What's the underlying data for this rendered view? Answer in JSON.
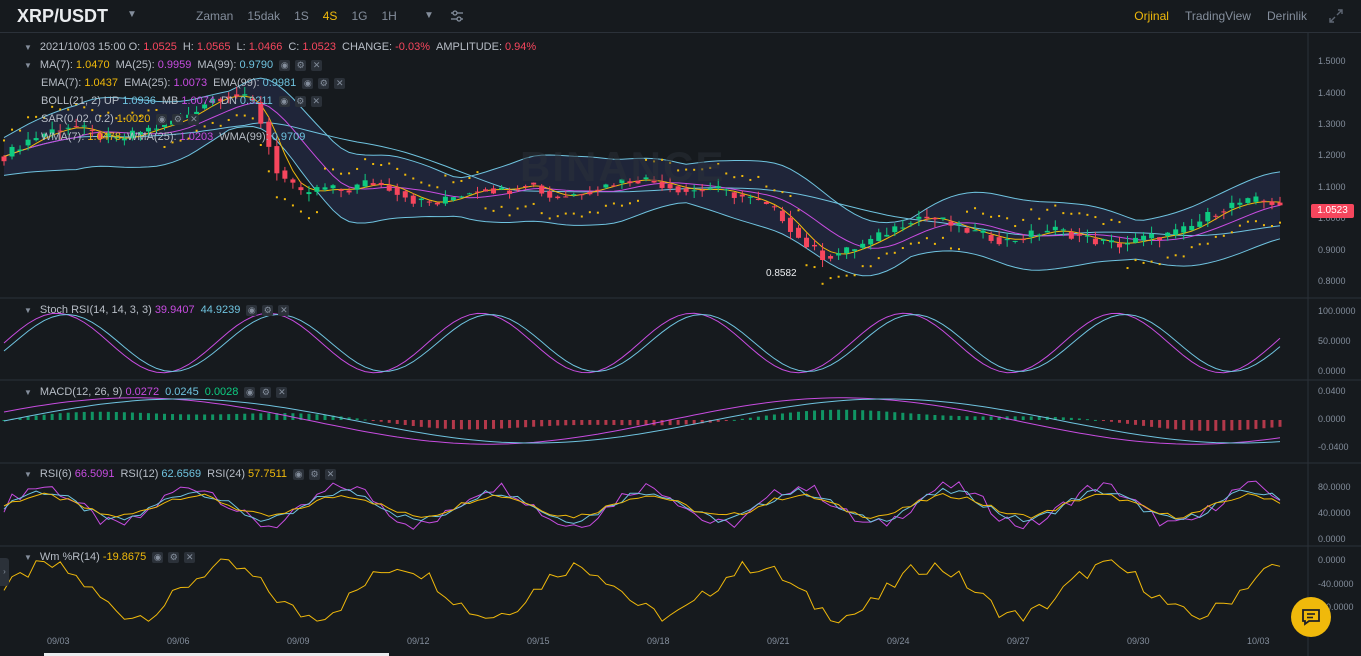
{
  "header": {
    "pair": "XRP/USDT",
    "intervals": [
      "Zaman",
      "15dak",
      "1S",
      "4S",
      "1G",
      "1H"
    ],
    "active_interval": "4S",
    "views": [
      "Orjinal",
      "TradingView",
      "Derinlik"
    ],
    "active_view": "Orjinal"
  },
  "colors": {
    "up": "#0ecb81",
    "down": "#f6465d",
    "accent": "#f0b90b",
    "bg": "#161a1e"
  },
  "legend": {
    "ohlc": {
      "date": "2021/10/03 15:00",
      "o_label": "O:",
      "o": "1.0525",
      "h_label": "H:",
      "h": "1.0565",
      "l_label": "L:",
      "l": "1.0466",
      "c_label": "C:",
      "c": "1.0523",
      "change_label": "CHANGE:",
      "change": "-0.03%",
      "amp_label": "AMPLITUDE:",
      "amp": "0.94%"
    },
    "ma": {
      "l1": "MA(7):",
      "v1": "1.0470",
      "l2": "MA(25):",
      "v2": "0.9959",
      "l3": "MA(99):",
      "v3": "0.9790"
    },
    "ema": {
      "l1": "EMA(7):",
      "v1": "1.0437",
      "l2": "EMA(25):",
      "v2": "1.0073",
      "l3": "EMA(99):",
      "v3": "0.9981"
    },
    "boll": {
      "l1": "BOLL(21, 2)",
      "l_up": "UP",
      "up": "1.0936",
      "l_mb": "MB",
      "mb": "1.0074",
      "l_dn": "DN",
      "dn": "0.9211"
    },
    "sar": {
      "l1": "SAR(0.02, 0.2)",
      "v1": "1.0020"
    },
    "wma": {
      "l1": "WMA(7):",
      "v1": "1.0478",
      "l2": "WMA(25):",
      "v2": "1.0203",
      "l3": "WMA(99):",
      "v3": "0.9709"
    },
    "stoch": {
      "l1": "Stoch RSI(14, 14, 3, 3)",
      "v1": "39.9407",
      "v2": "44.9239"
    },
    "macd": {
      "l1": "MACD(12, 26, 9)",
      "v1": "0.0272",
      "v2": "0.0245",
      "v3": "0.0028"
    },
    "rsi": {
      "l1": "RSI(6)",
      "v1": "66.5091",
      "l2": "RSI(12)",
      "v2": "62.6569",
      "l3": "RSI(24)",
      "v3": "57.7511"
    },
    "wr": {
      "l1": "Wm %R(14)",
      "v1": "-19.8675"
    }
  },
  "last_price_tag": "1.0523",
  "low_marker": "0.8582",
  "watermark": "BINANCE",
  "chart_data": {
    "type": "candlestick",
    "x_ticks": [
      "09/03",
      "09/06",
      "09/09",
      "09/12",
      "09/15",
      "09/18",
      "09/21",
      "09/24",
      "09/27",
      "09/30",
      "10/03"
    ],
    "price_axis": {
      "ticks": [
        "0.8000",
        "0.9000",
        "1.0000",
        "1.1000",
        "1.2000",
        "1.3000",
        "1.4000",
        "1.5000"
      ],
      "ylim": [
        0.76,
        1.57
      ]
    },
    "stoch_axis": {
      "ticks": [
        "0.0000",
        "50.0000",
        "100.0000"
      ]
    },
    "macd_axis": {
      "ticks": [
        "-0.0400",
        "0.0000",
        "0.0400"
      ]
    },
    "rsi_axis": {
      "ticks": [
        "0.0000",
        "40.0000",
        "80.0000"
      ]
    },
    "wr_axis": {
      "ticks": [
        "-80.0000",
        "-40.0000",
        "0.0000"
      ]
    },
    "close_path": [
      1.2,
      1.25,
      1.28,
      1.3,
      1.27,
      1.25,
      1.28,
      1.3,
      1.33,
      1.38,
      1.4,
      1.37,
      1.15,
      1.08,
      1.1,
      1.09,
      1.12,
      1.1,
      1.06,
      1.05,
      1.08,
      1.1,
      1.09,
      1.12,
      1.07,
      1.08,
      1.1,
      1.12,
      1.13,
      1.11,
      1.09,
      1.1,
      1.08,
      1.06,
      1.02,
      0.93,
      0.88,
      0.9,
      0.93,
      0.97,
      1.01,
      1.0,
      0.97,
      0.95,
      0.93,
      0.95,
      0.97,
      0.95,
      0.93,
      0.92,
      0.94,
      0.95,
      0.97,
      1.02,
      1.05,
      1.06,
      1.05
    ]
  }
}
